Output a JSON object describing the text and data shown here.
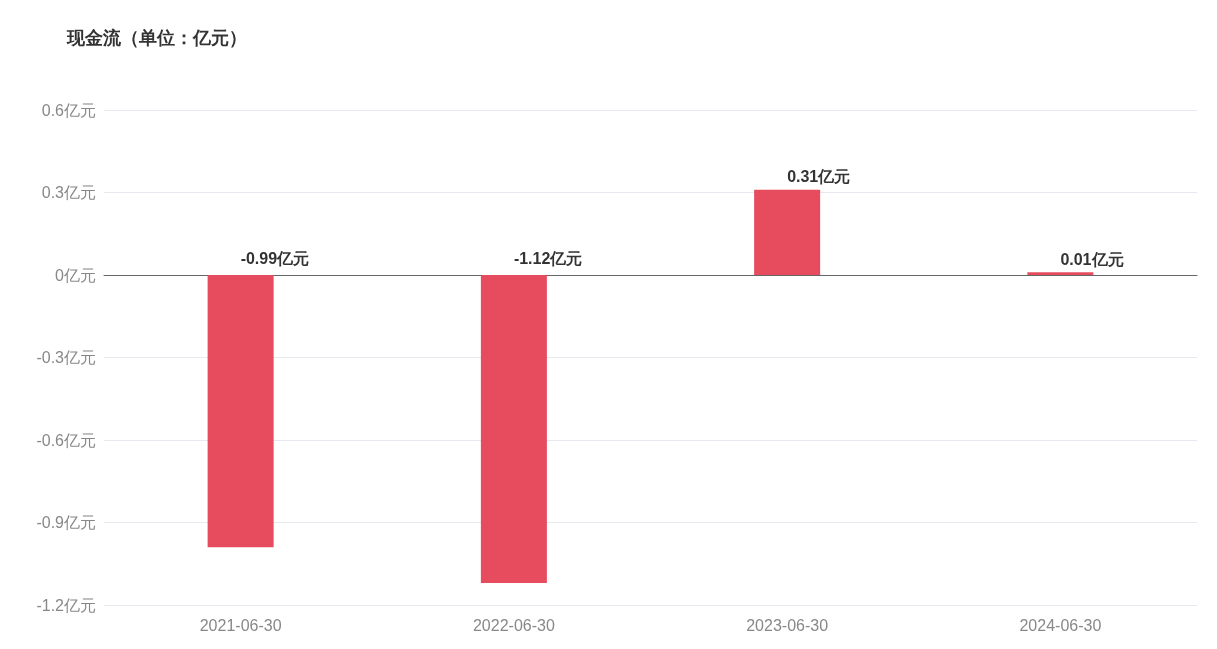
{
  "chart_data": {
    "type": "bar",
    "title": "现金流（单位：亿元）",
    "categories": [
      "2021-06-30",
      "2022-06-30",
      "2023-06-30",
      "2024-06-30"
    ],
    "values": [
      -0.99,
      -1.12,
      0.31,
      0.01
    ],
    "color": "#e64c5e",
    "value_labels": [
      "-0.99亿元",
      "-1.12亿元",
      "0.31亿元",
      "0.01亿元"
    ],
    "ylim": [
      -1.2,
      0.6
    ],
    "yticks": [
      {
        "value": -1.2,
        "label": "-1.2亿元"
      },
      {
        "value": -0.9,
        "label": "-0.9亿元"
      },
      {
        "value": -0.6,
        "label": "-0.6亿元"
      },
      {
        "value": -0.3,
        "label": "-0.3亿元"
      },
      {
        "value": 0,
        "label": "0亿元"
      },
      {
        "value": 0.3,
        "label": "0.3亿元"
      },
      {
        "value": 0.6,
        "label": "0.6亿元"
      }
    ],
    "grid": "y"
  }
}
